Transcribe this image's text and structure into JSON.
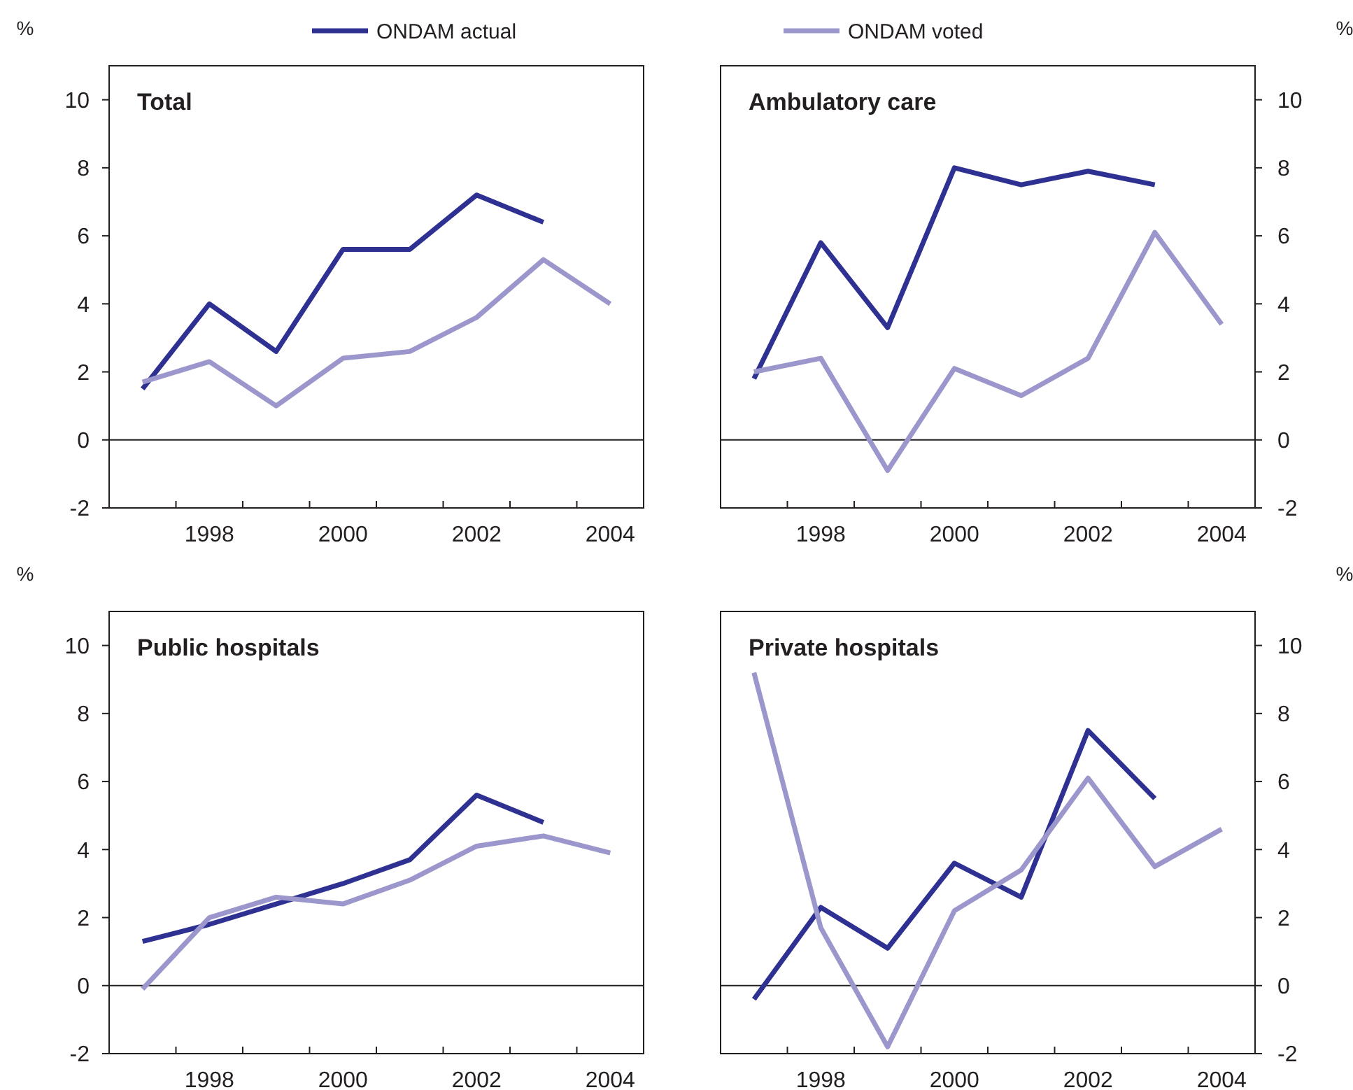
{
  "chart_data": [
    {
      "type": "line",
      "title": "Total",
      "ylabel": "%",
      "categories": [
        null,
        "1998",
        null,
        "2000",
        null,
        "2002",
        null,
        "2004"
      ],
      "ylim": [
        -2,
        11
      ],
      "yticks": [
        -2,
        0,
        2,
        4,
        6,
        8,
        10
      ],
      "legend": "top",
      "ref_lines": [
        {
          "axis": "y",
          "value": 0,
          "color": "#231f20"
        }
      ],
      "series": [
        {
          "name": "ONDAM actual",
          "color": "#2e3192",
          "values": [
            1.5,
            4.0,
            2.6,
            5.6,
            5.6,
            7.2,
            6.4,
            null
          ]
        },
        {
          "name": "ONDAM voted",
          "color": "#9b97cc",
          "values": [
            1.7,
            2.3,
            1.0,
            2.4,
            2.6,
            3.6,
            5.3,
            4.0
          ]
        }
      ]
    },
    {
      "type": "line",
      "title": "Ambulatory care",
      "ylabel": "%",
      "categories": [
        null,
        "1998",
        null,
        "2000",
        null,
        "2002",
        null,
        "2004"
      ],
      "ylim": [
        -2,
        11
      ],
      "yticks": [
        -2,
        0,
        2,
        4,
        6,
        8,
        10
      ],
      "ref_lines": [
        {
          "axis": "y",
          "value": 0,
          "color": "#231f20"
        }
      ],
      "series": [
        {
          "color": "#2e3192",
          "values": [
            1.8,
            5.8,
            3.3,
            8.0,
            7.5,
            7.9,
            7.5,
            null
          ]
        },
        {
          "color": "#9b97cc",
          "values": [
            2.0,
            2.4,
            -0.9,
            2.1,
            1.3,
            2.4,
            6.1,
            3.4
          ]
        }
      ]
    },
    {
      "type": "line",
      "title": "Public hospitals",
      "ylabel": "%",
      "categories": [
        null,
        "1998",
        null,
        "2000",
        null,
        "2002",
        null,
        "2004"
      ],
      "ylim": [
        -2,
        11
      ],
      "yticks": [
        -2,
        0,
        2,
        4,
        6,
        8,
        10
      ],
      "ref_lines": [
        {
          "axis": "y",
          "value": 0,
          "color": "#231f20"
        }
      ],
      "series": [
        {
          "color": "#2e3192",
          "values": [
            1.3,
            1.8,
            2.4,
            3.0,
            3.7,
            5.6,
            4.8,
            null
          ]
        },
        {
          "color": "#9b97cc",
          "values": [
            -0.1,
            2.0,
            2.6,
            2.4,
            3.1,
            4.1,
            4.4,
            3.9
          ]
        }
      ]
    },
    {
      "type": "line",
      "title": "Private hospitals",
      "ylabel": "%",
      "categories": [
        null,
        "1998",
        null,
        "2000",
        null,
        "2002",
        null,
        "2004"
      ],
      "ylim": [
        -2,
        11
      ],
      "yticks": [
        -2,
        0,
        2,
        4,
        6,
        8,
        10
      ],
      "ref_lines": [
        {
          "axis": "y",
          "value": 0,
          "color": "#231f20"
        }
      ],
      "series": [
        {
          "color": "#2e3192",
          "values": [
            -0.4,
            2.3,
            1.1,
            3.6,
            2.6,
            7.5,
            5.5,
            null
          ]
        },
        {
          "color": "#9b97cc",
          "values": [
            9.2,
            1.7,
            -1.8,
            2.2,
            3.4,
            6.1,
            3.5,
            4.6
          ]
        }
      ]
    }
  ]
}
